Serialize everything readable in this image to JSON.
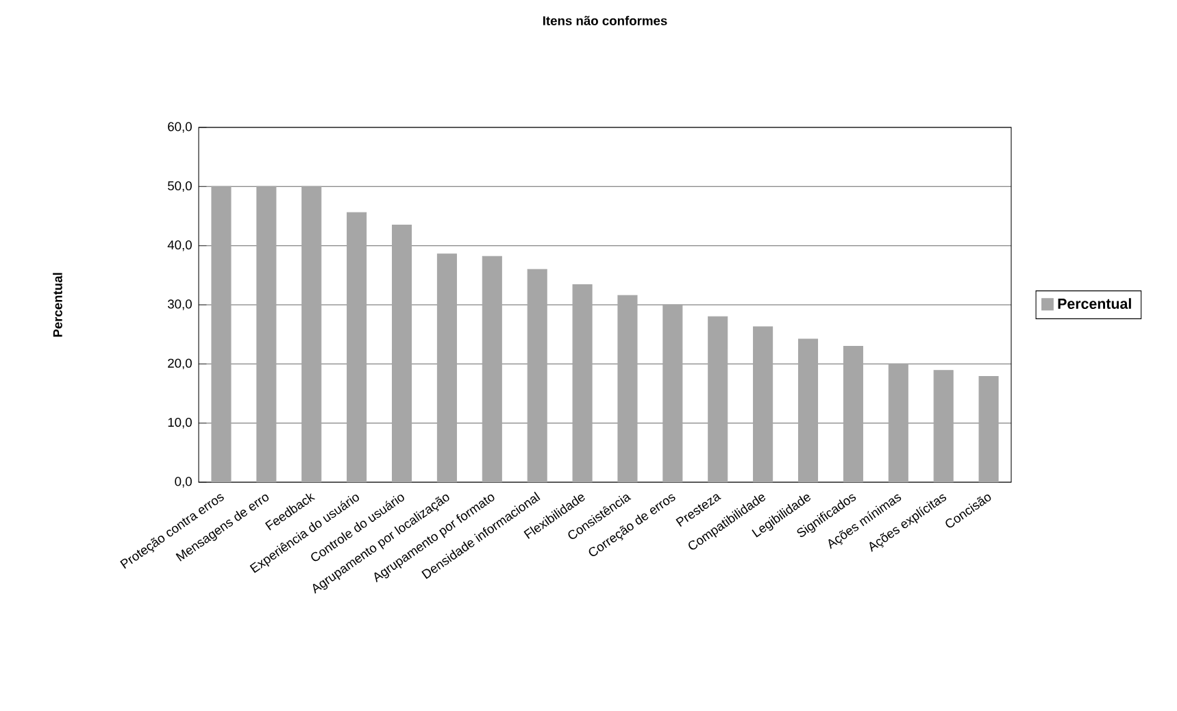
{
  "chart_data": {
    "type": "bar",
    "title": "Itens não conformes",
    "ylabel": "Percentual",
    "categories": [
      "Proteção contra erros",
      "Mensagens de erro",
      "Feedback",
      "Experiência do usuário",
      "Controle do usuário",
      "Agrupamento por localização",
      "Agrupamento por formato",
      "Densidade informacional",
      "Flexibilidade",
      "Consistência",
      "Correção de erros",
      "Presteza",
      "Compatibilidade",
      "Legibilidade",
      "Significados",
      "Ações mínimas",
      "Ações explícitas",
      "Concisão"
    ],
    "series": [
      {
        "name": "Percentual",
        "color": "#a6a6a6",
        "values": [
          50,
          50,
          50,
          45.6,
          43.5,
          38.6,
          38.2,
          36,
          33.4,
          31.6,
          30,
          28,
          26.3,
          24.2,
          23,
          20,
          18.9,
          17.9
        ]
      }
    ],
    "ylim": [
      0,
      60
    ],
    "yticks": [
      {
        "value": 0,
        "label": "0,0"
      },
      {
        "value": 10,
        "label": "10,0"
      },
      {
        "value": 20,
        "label": "20,0"
      },
      {
        "value": 30,
        "label": "30,0"
      },
      {
        "value": 40,
        "label": "40,0"
      },
      {
        "value": 50,
        "label": "50,0"
      },
      {
        "value": 60,
        "label": "60,0"
      }
    ],
    "grid": "y",
    "legend": "right"
  }
}
